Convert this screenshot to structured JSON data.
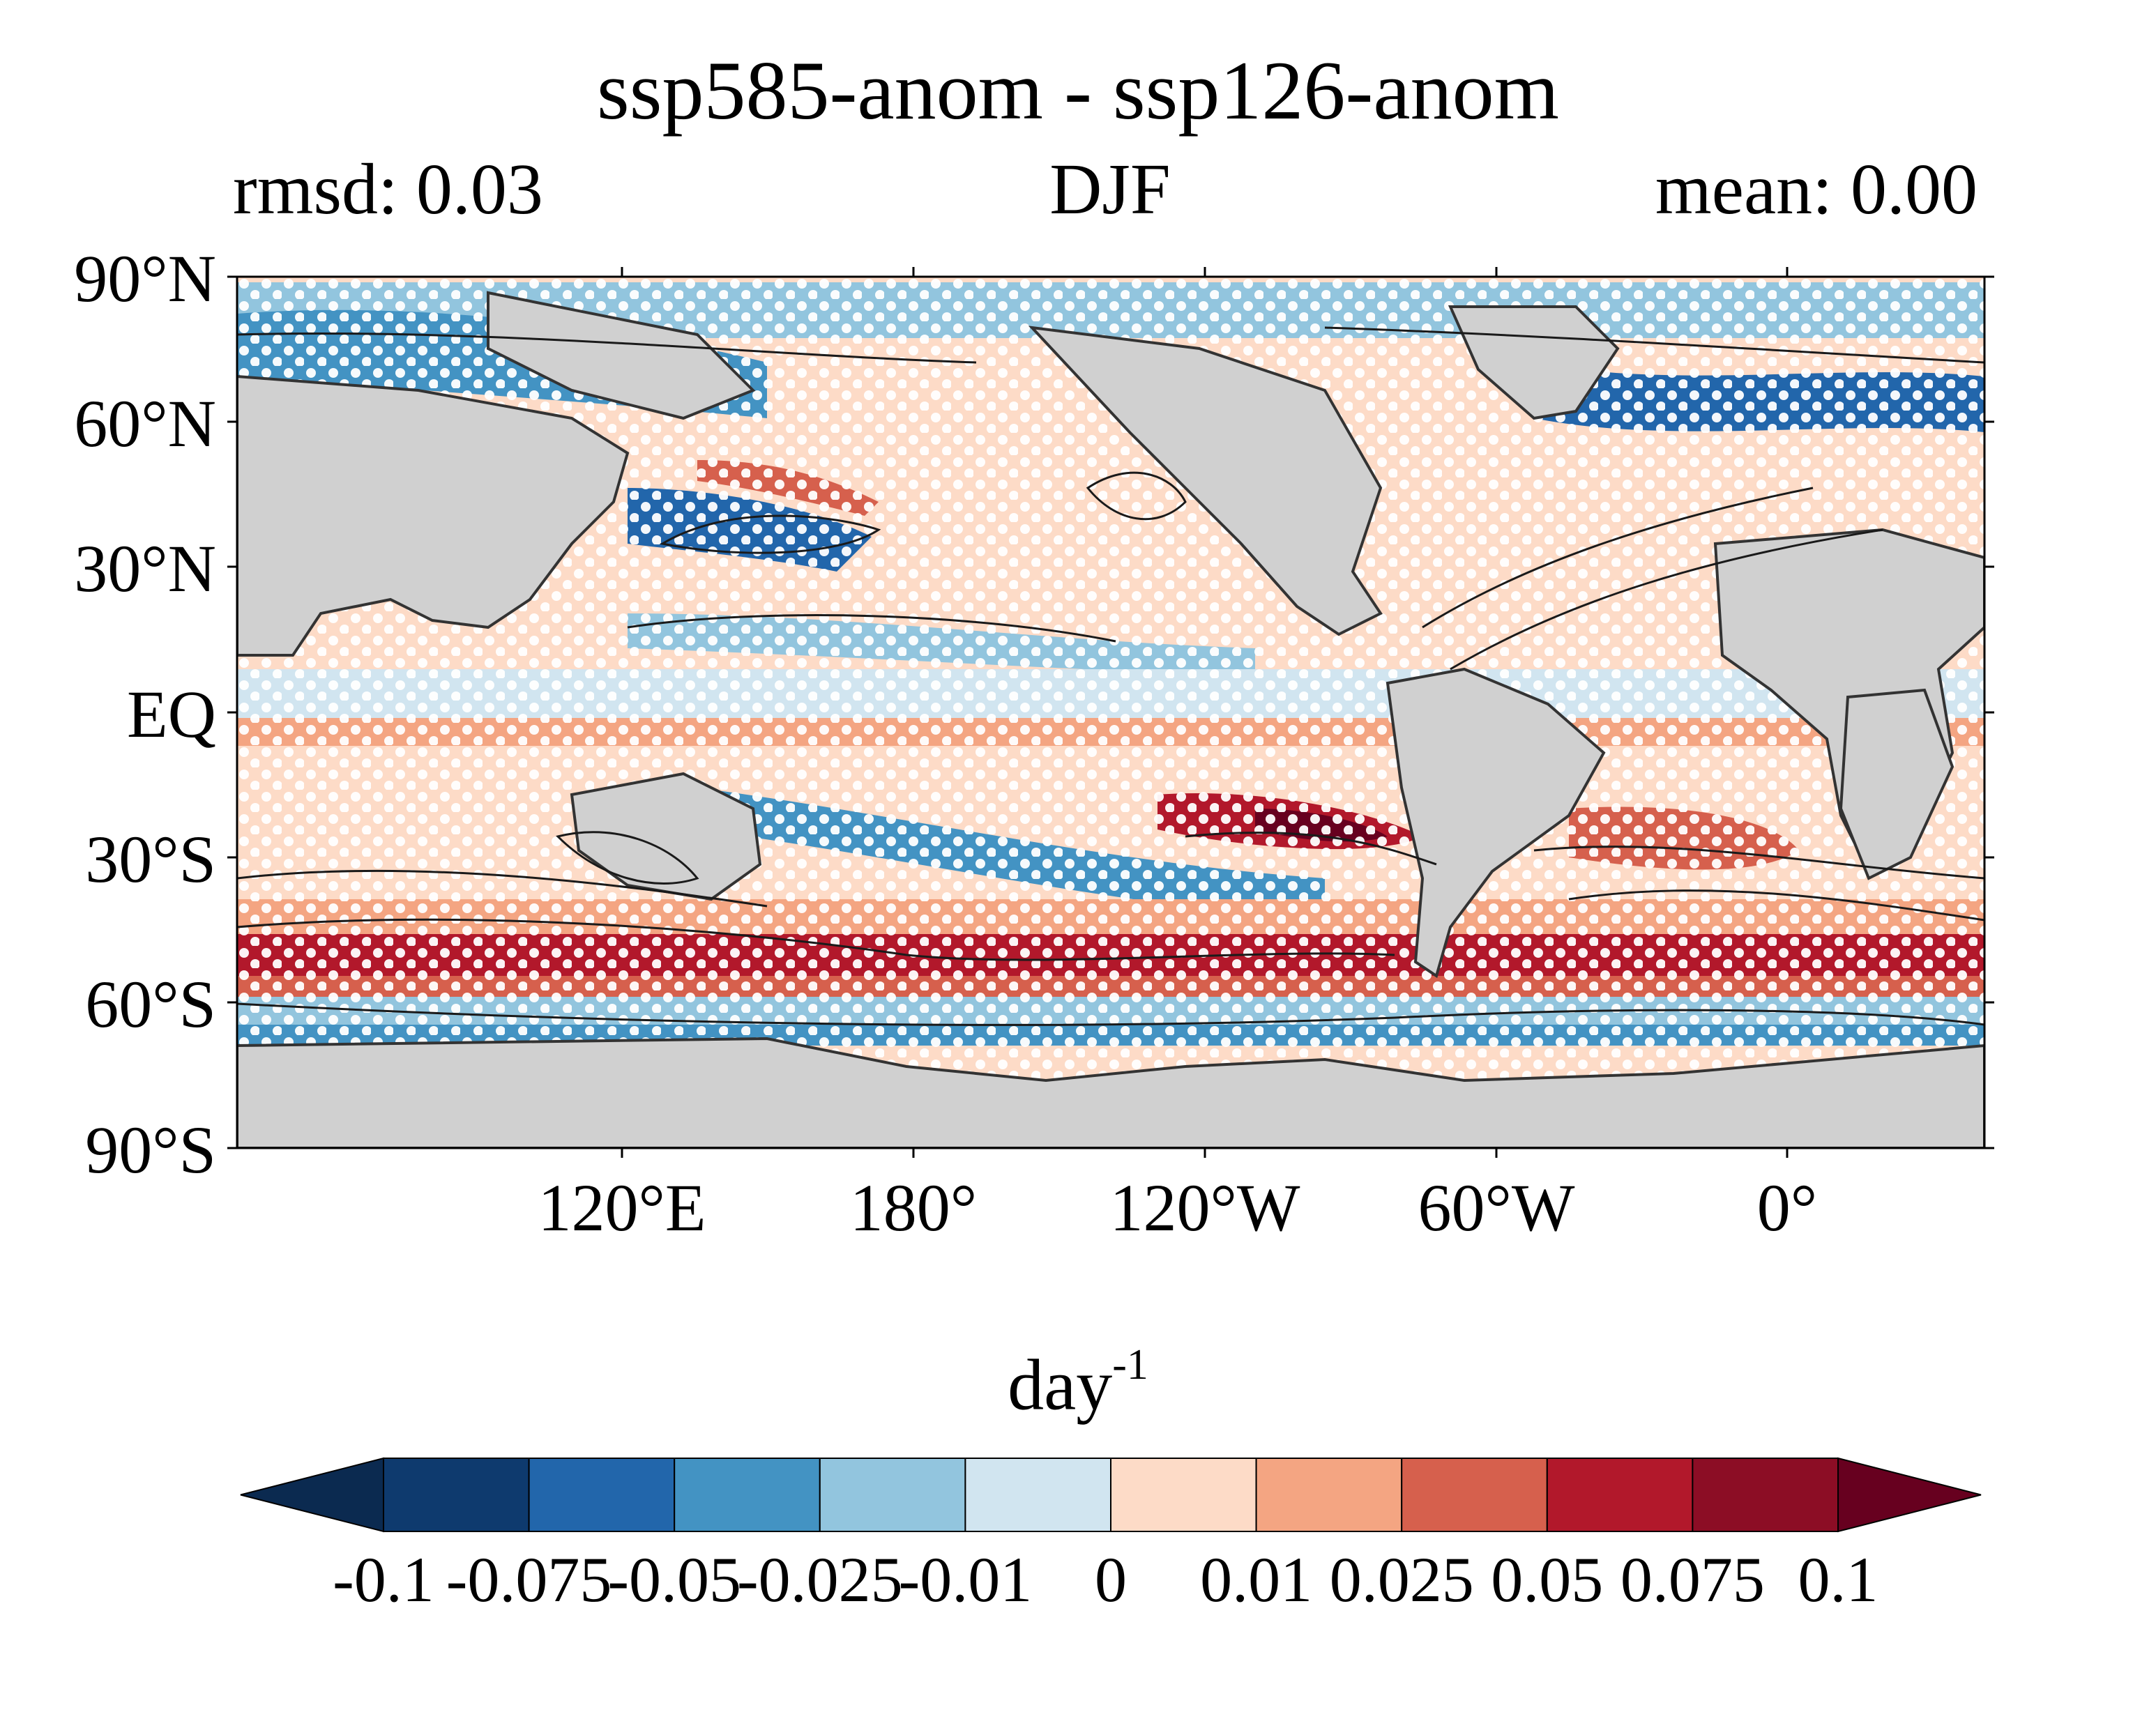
{
  "title": "ssp585-anom - ssp126-anom",
  "subtitle_left": "rmsd: 0.03",
  "subtitle_center": "DJF",
  "subtitle_right": "mean: 0.00",
  "y_ticks": [
    "90°N",
    "60°N",
    "30°N",
    "EQ",
    "30°S",
    "60°S",
    "90°S"
  ],
  "x_ticks": [
    "120°E",
    "180°",
    "120°W",
    "60°W",
    "0°"
  ],
  "colorbar": {
    "unit_base": "day",
    "unit_exp": "-1",
    "levels": [
      "-0.1",
      "-0.075",
      "-0.05",
      "-0.025",
      "-0.01",
      "0",
      "0.01",
      "0.025",
      "0.05",
      "0.075",
      "0.1"
    ],
    "colors": [
      "#0b2a50",
      "#0e3a6e",
      "#2266ab",
      "#4393c3",
      "#92c5de",
      "#d1e5f0",
      "#fddbc7",
      "#f4a582",
      "#d6604d",
      "#b2182b",
      "#8c0d25",
      "#67001f"
    ]
  },
  "land_color": "#d0d0d0",
  "map_projection": "PlateCarree, central longitude 150°E",
  "stippling": "white dots"
}
